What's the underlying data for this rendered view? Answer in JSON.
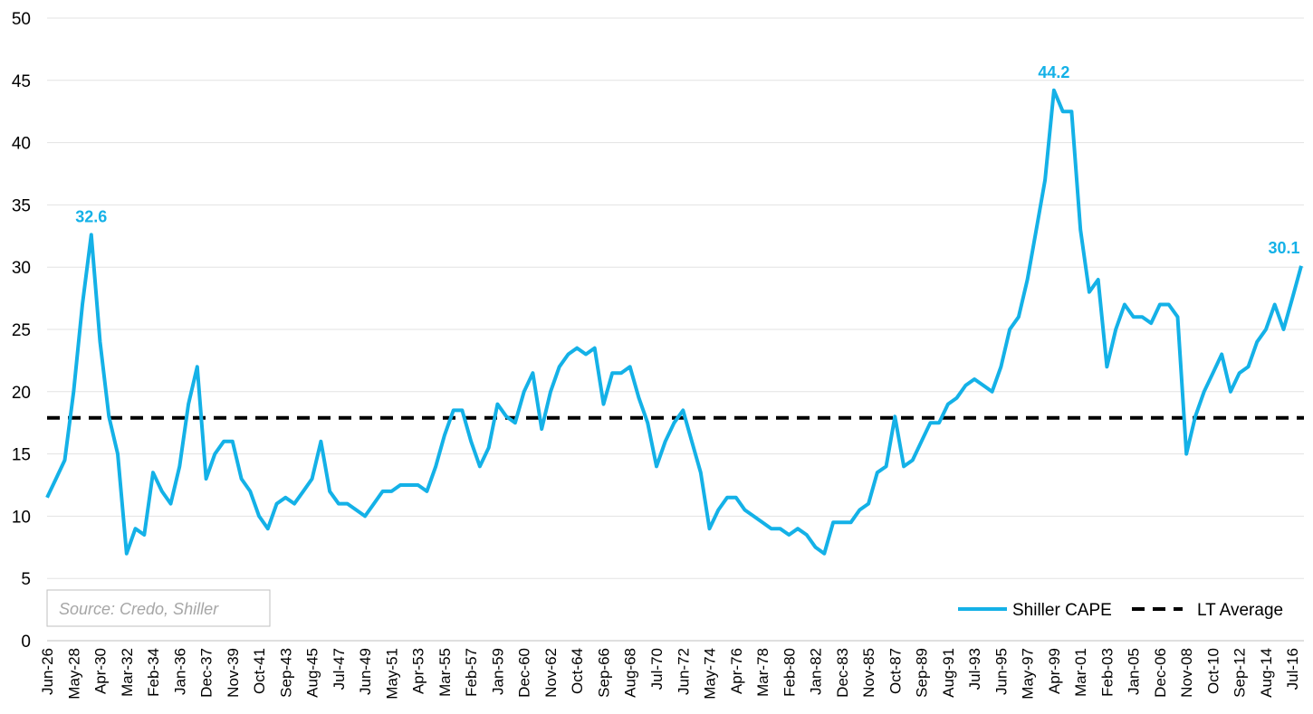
{
  "chart_data": {
    "type": "line",
    "categories": [
      "Jun-26",
      null,
      null,
      "May-28",
      null,
      null,
      "Apr-30",
      null,
      null,
      "Mar-32",
      null,
      null,
      "Feb-34",
      null,
      null,
      "Jan-36",
      null,
      null,
      "Dec-37",
      null,
      null,
      "Nov-39",
      null,
      null,
      "Oct-41",
      null,
      null,
      "Sep-43",
      null,
      null,
      "Aug-45",
      null,
      null,
      "Jul-47",
      null,
      null,
      "Jun-49",
      null,
      null,
      "May-51",
      null,
      null,
      "Apr-53",
      null,
      null,
      "Mar-55",
      null,
      null,
      "Feb-57",
      null,
      null,
      "Jan-59",
      null,
      null,
      "Dec-60",
      null,
      null,
      "Nov-62",
      null,
      null,
      "Oct-64",
      null,
      null,
      "Sep-66",
      null,
      null,
      "Aug-68",
      null,
      null,
      "Jul-70",
      null,
      null,
      "Jun-72",
      null,
      null,
      "May-74",
      null,
      null,
      "Apr-76",
      null,
      null,
      "Mar-78",
      null,
      null,
      "Feb-80",
      null,
      null,
      "Jan-82",
      null,
      null,
      "Dec-83",
      null,
      null,
      "Nov-85",
      null,
      null,
      "Oct-87",
      null,
      null,
      "Sep-89",
      null,
      null,
      "Aug-91",
      null,
      null,
      "Jul-93",
      null,
      null,
      "Jun-95",
      null,
      null,
      "May-97",
      null,
      null,
      "Apr-99",
      null,
      null,
      "Mar-01",
      null,
      null,
      "Feb-03",
      null,
      null,
      "Jan-05",
      null,
      null,
      "Dec-06",
      null,
      null,
      "Nov-08",
      null,
      null,
      "Oct-10",
      null,
      null,
      "Sep-12",
      null,
      null,
      "Aug-14",
      null,
      null,
      "Jul-16",
      null
    ],
    "series": [
      {
        "name": "Shiller CAPE",
        "color": "#14b1e7",
        "values": [
          11.5,
          13,
          14.5,
          20,
          27,
          32.6,
          24,
          18,
          15,
          7,
          9,
          8.5,
          13.5,
          12,
          11,
          14,
          19,
          22,
          13,
          15,
          16,
          16,
          13,
          12,
          10,
          9,
          11,
          11.5,
          11,
          12,
          13,
          16,
          12,
          11,
          11,
          10.5,
          10,
          11,
          12,
          12,
          12.5,
          12.5,
          12.5,
          12,
          14,
          16.5,
          18.5,
          18.5,
          16,
          14,
          15.5,
          19,
          18,
          17.5,
          20,
          21.5,
          17,
          20,
          22,
          23,
          23.5,
          23,
          23.5,
          19,
          21.5,
          21.5,
          22,
          19.5,
          17.5,
          14,
          16,
          17.5,
          18.5,
          16,
          13.5,
          9,
          10.5,
          11.5,
          11.5,
          10.5,
          10,
          9.5,
          9,
          9,
          8.5,
          9,
          8.5,
          7.5,
          7,
          9.5,
          9.5,
          9.5,
          10.5,
          11,
          13.5,
          14,
          18,
          14,
          14.5,
          16,
          17.5,
          17.5,
          19,
          19.5,
          20.5,
          21,
          20.5,
          20,
          22,
          25,
          26,
          29,
          33,
          37,
          44.2,
          42.5,
          42.5,
          33,
          28,
          29,
          22,
          25,
          27,
          26,
          26,
          25.5,
          27,
          27,
          26,
          15,
          18,
          20,
          21.5,
          23,
          20,
          21.5,
          22,
          24,
          25,
          27,
          25,
          27.5,
          30.1
        ],
        "value_labels": [
          null,
          null,
          null,
          null,
          null,
          "32.6",
          null,
          null,
          null,
          null,
          null,
          null,
          null,
          null,
          null,
          null,
          null,
          null,
          null,
          null,
          null,
          null,
          null,
          null,
          null,
          null,
          null,
          null,
          null,
          null,
          null,
          null,
          null,
          null,
          null,
          null,
          null,
          null,
          null,
          null,
          null,
          null,
          null,
          null,
          null,
          null,
          null,
          null,
          null,
          null,
          null,
          null,
          null,
          null,
          null,
          null,
          null,
          null,
          null,
          null,
          null,
          null,
          null,
          null,
          null,
          null,
          null,
          null,
          null,
          null,
          null,
          null,
          null,
          null,
          null,
          null,
          null,
          null,
          null,
          null,
          null,
          null,
          null,
          null,
          null,
          null,
          null,
          null,
          null,
          null,
          null,
          null,
          null,
          null,
          null,
          null,
          null,
          null,
          null,
          null,
          null,
          null,
          null,
          null,
          null,
          null,
          null,
          null,
          null,
          null,
          null,
          null,
          null,
          null,
          "44.2",
          null,
          null,
          null,
          null,
          null,
          null,
          null,
          null,
          null,
          null,
          null,
          null,
          null,
          null,
          null,
          null,
          null,
          null,
          null,
          null,
          null,
          null,
          null,
          null,
          null,
          null,
          null,
          "30.1"
        ]
      }
    ],
    "reference_line": {
      "name": "LT Average",
      "value": 17.9,
      "color": "#000000",
      "dashed": true
    },
    "ylim": [
      0,
      50
    ],
    "yticks": [
      0,
      5,
      10,
      15,
      20,
      25,
      30,
      35,
      40,
      45,
      50
    ],
    "grid": true,
    "legend": "bottom-right",
    "source": "Source: Credo, Shiller"
  }
}
